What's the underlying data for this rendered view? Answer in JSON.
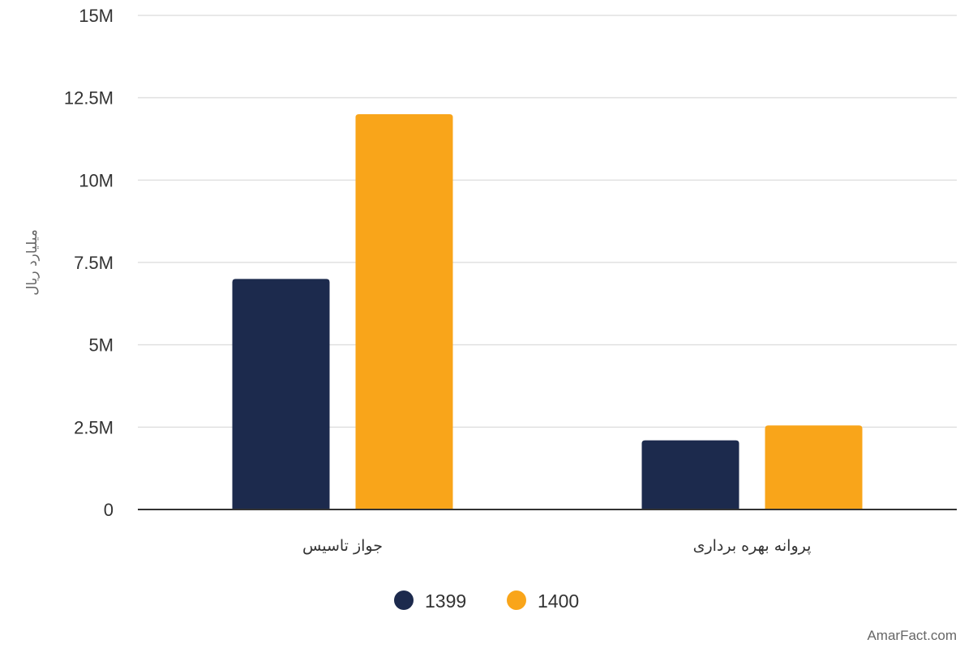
{
  "chart_data": {
    "type": "bar",
    "ylabel": "میلیارد ریال",
    "categories": [
      "جواز تاسیس",
      "پروانه بهره برداری"
    ],
    "series": [
      {
        "name": "1399",
        "color": "#1c2a4d",
        "values": [
          7000000,
          2100000
        ]
      },
      {
        "name": "1400",
        "color": "#f9a51a",
        "values": [
          12000000,
          2550000
        ]
      }
    ],
    "ylim": [
      0,
      15000000
    ],
    "yticks": [
      0,
      2500000,
      5000000,
      7500000,
      10000000,
      12500000,
      15000000
    ],
    "ytick_labels": [
      "0",
      "2.5M",
      "5M",
      "7.5M",
      "10M",
      "12.5M",
      "15M"
    ],
    "grid": true,
    "legend_position": "bottom-center"
  },
  "watermark": "AmarFact.com"
}
